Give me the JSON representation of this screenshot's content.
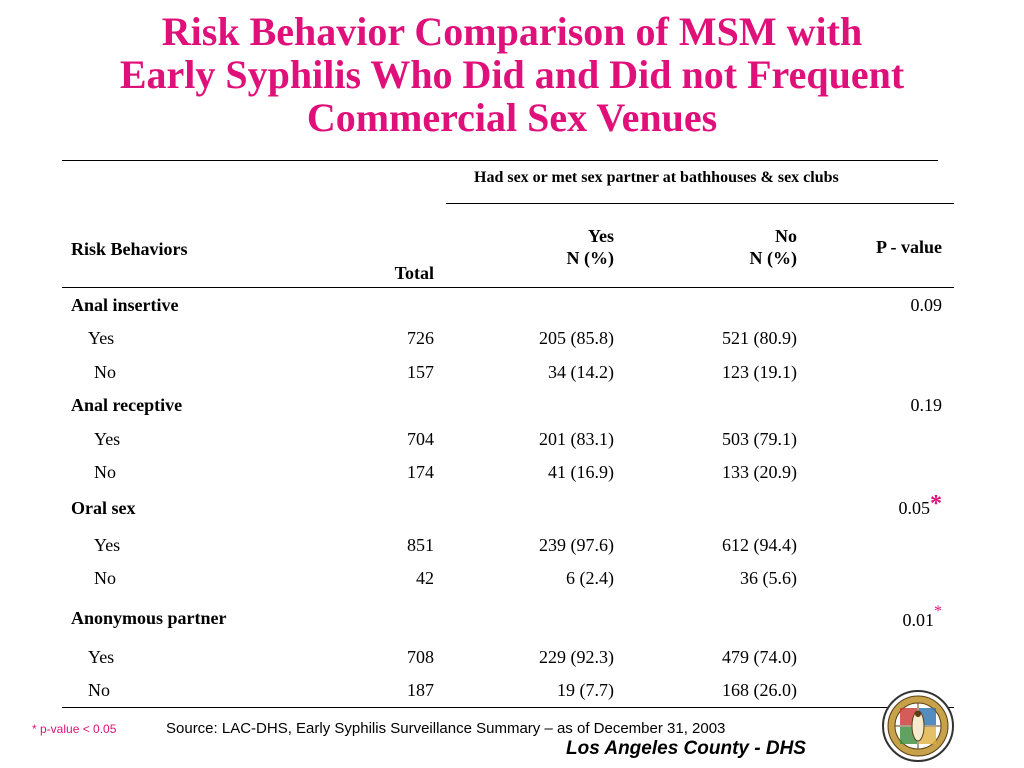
{
  "title": {
    "line1": "Risk Behavior Comparison of MSM with",
    "line2": "Early Syphilis Who Did and Did not Frequent",
    "line3": "Commercial Sex Venues"
  },
  "table": {
    "group_header": "Had sex or met sex partner at bathhouses & sex clubs",
    "col_risk": "Risk Behaviors",
    "col_total": "Total",
    "col_yes_1": "Yes",
    "col_yes_2": "N (%)",
    "col_no_1": "No",
    "col_no_2": "N (%)",
    "col_p": "P - value",
    "sections": [
      {
        "label": "Anal insertive",
        "p": "0.09",
        "star": "",
        "rows": [
          {
            "label": "Yes",
            "total": "726",
            "yes": "205 (85.8)",
            "no": "521 (80.9)"
          },
          {
            "label": "No",
            "total": "157",
            "yes": "34 (14.2)",
            "no": "123 (19.1)"
          }
        ]
      },
      {
        "label": "Anal receptive",
        "p": "0.19",
        "star": "",
        "rows": [
          {
            "label": "Yes",
            "total": "704",
            "yes": "201 (83.1)",
            "no": "503 (79.1)"
          },
          {
            "label": "No",
            "total": "174",
            "yes": "41 (16.9)",
            "no": "133 (20.9)"
          }
        ]
      },
      {
        "label": "Oral sex",
        "p": "0.05",
        "star": "*",
        "rows": [
          {
            "label": "Yes",
            "total": "851",
            "yes": "239 (97.6)",
            "no": "612 (94.4)"
          },
          {
            "label": "No",
            "total": "42",
            "yes": "6 (2.4)",
            "no": "36 (5.6)"
          }
        ]
      },
      {
        "label": "Anonymous partner",
        "p": "0.01",
        "star": "*",
        "rows": [
          {
            "label": "Yes",
            "total": "708",
            "yes": "229 (92.3)",
            "no": "479 (74.0)"
          },
          {
            "label": "No",
            "total": "187",
            "yes": "19 (7.7)",
            "no": "168 (26.0)"
          }
        ]
      }
    ]
  },
  "footnote": "* p-value < 0.05",
  "source": "Source: LAC-DHS, Early Syphilis Surveillance Summary – as of December 31, 2003",
  "department": "Los Angeles County - DHS",
  "colors": {
    "title": "#e0107a",
    "star": "#e0107a",
    "seal_gold": "#c8a24a"
  }
}
